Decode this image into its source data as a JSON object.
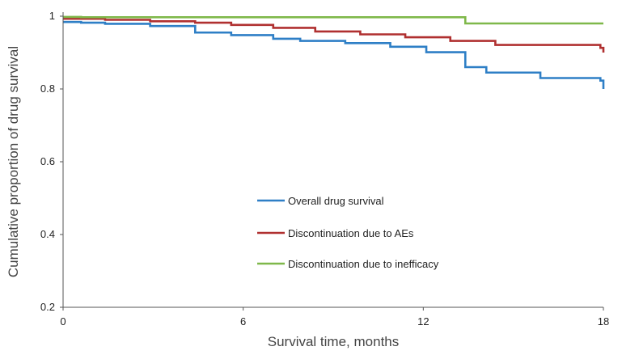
{
  "chart_data": {
    "type": "line",
    "step": true,
    "xlabel": "Survival time, months",
    "ylabel": "Cumulative proportion of drug survival",
    "xlim": [
      0,
      18
    ],
    "ylim": [
      0.2,
      1.0
    ],
    "xticks": [
      0,
      6,
      12,
      18
    ],
    "yticks": [
      {
        "value": 0.2,
        "label": "0.2"
      },
      {
        "value": 0.4,
        "label": "0.4"
      },
      {
        "value": 0.6,
        "label": "0.6"
      },
      {
        "value": 0.8,
        "label": "0.8"
      },
      {
        "value": 1.0,
        "label": "1"
      }
    ],
    "grid": false,
    "legend_position": "center",
    "series": [
      {
        "name": "Overall drug survival",
        "color": "#2e7fc6",
        "x": [
          0,
          0.6,
          1.4,
          2.9,
          4.4,
          5.6,
          7.0,
          7.9,
          9.4,
          10.9,
          12.1,
          13.4,
          14.1,
          15.9,
          17.9,
          18.0
        ],
        "y": [
          0.984,
          0.982,
          0.979,
          0.973,
          0.955,
          0.948,
          0.938,
          0.932,
          0.926,
          0.916,
          0.901,
          0.86,
          0.845,
          0.83,
          0.823,
          0.8
        ]
      },
      {
        "name": "Discontinuation due to AEs",
        "color": "#b03030",
        "x": [
          0,
          1.4,
          2.9,
          4.4,
          5.6,
          7.0,
          8.4,
          9.9,
          11.4,
          12.9,
          14.4,
          17.9,
          18.0
        ],
        "y": [
          0.993,
          0.99,
          0.986,
          0.982,
          0.976,
          0.968,
          0.958,
          0.95,
          0.942,
          0.932,
          0.921,
          0.913,
          0.9
        ]
      },
      {
        "name": "Discontinuation due to inefficacy",
        "color": "#7fb84a",
        "x": [
          0,
          0.6,
          4.4,
          13.4,
          18.0
        ],
        "y": [
          0.998,
          0.997,
          0.997,
          0.98,
          0.98
        ]
      }
    ]
  }
}
